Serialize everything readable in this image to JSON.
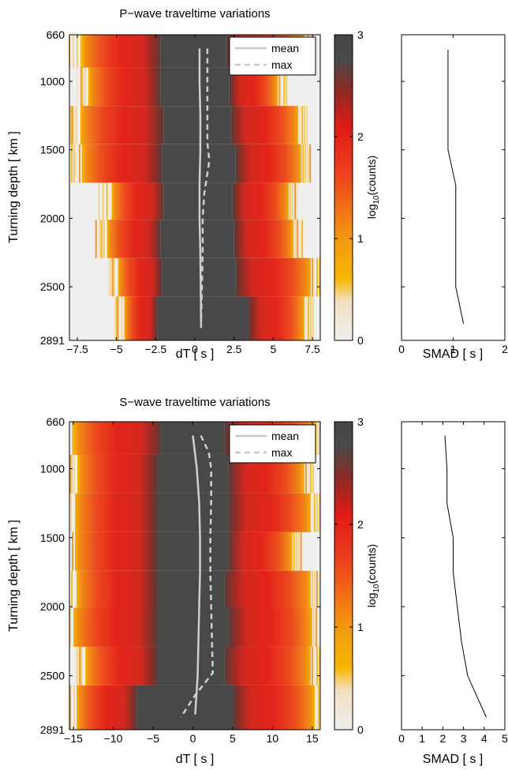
{
  "chart_data": [
    {
      "type": "heatmap",
      "title": "P−wave traveltime variations",
      "xlabel": "dT [ s ]",
      "ylabel": "Turning depth [ km ]",
      "xlim": [
        -8,
        8
      ],
      "ylim": [
        660,
        2891
      ],
      "xticks": [
        -7.5,
        -5,
        -2.5,
        0,
        2.5,
        5,
        7.5
      ],
      "xtick_labels": [
        "−7.5",
        "−5",
        "−2.5",
        "0",
        "2.5",
        "5",
        "7.5"
      ],
      "yticks": [
        660,
        1000,
        1500,
        2000,
        2500,
        2891
      ],
      "ytick_labels": [
        "660",
        "1000",
        "1500",
        "2000",
        "2500",
        "2891"
      ],
      "legend": {
        "placement": "top-right",
        "entries": [
          "mean",
          "max"
        ]
      },
      "colorbar": {
        "label": "log₁₀(counts)",
        "label_main": "log",
        "label_sub": "10",
        "label_tail": "(counts)",
        "range": [
          0,
          3
        ],
        "ticks": [
          "0",
          "1",
          "2",
          "3"
        ]
      },
      "depth_bins": [
        {
          "top": 660,
          "bottom": 900,
          "gray": [
            -2.2,
            2.0
          ],
          "color": [
            -7.2,
            7.0
          ]
        },
        {
          "top": 900,
          "bottom": 1180,
          "gray": [
            -2.2,
            2.2
          ],
          "color": [
            -6.8,
            5.3
          ]
        },
        {
          "top": 1180,
          "bottom": 1460,
          "gray": [
            -2.0,
            2.3
          ],
          "color": [
            -7.3,
            6.6
          ]
        },
        {
          "top": 1460,
          "bottom": 1740,
          "gray": [
            -2.1,
            2.6
          ],
          "color": [
            -7.2,
            6.8
          ]
        },
        {
          "top": 1740,
          "bottom": 2010,
          "gray": [
            -2.0,
            2.4
          ],
          "color": [
            -5.3,
            6.0
          ]
        },
        {
          "top": 2010,
          "bottom": 2290,
          "gray": [
            -2.2,
            2.5
          ],
          "color": [
            -5.6,
            6.3
          ]
        },
        {
          "top": 2290,
          "bottom": 2570,
          "gray": [
            -2.1,
            2.6
          ],
          "color": [
            -4.9,
            7.4
          ]
        },
        {
          "top": 2570,
          "bottom": 2891,
          "gray": [
            -2.4,
            3.4
          ],
          "color": [
            -4.5,
            7.0
          ]
        }
      ],
      "series": [
        {
          "name": "mean",
          "x": [
            0.3,
            0.3,
            0.35,
            0.35,
            0.3,
            0.3,
            0.35,
            0.4
          ],
          "y": [
            760,
            1000,
            1250,
            1500,
            1750,
            2000,
            2250,
            2800
          ]
        },
        {
          "name": "max",
          "x": [
            0.8,
            0.8,
            0.8,
            0.8,
            0.9,
            0.9,
            0.6,
            0.5,
            0.5,
            0.45,
            0.4
          ],
          "y": [
            760,
            1000,
            1250,
            1450,
            1550,
            1600,
            1820,
            2000,
            2250,
            2500,
            2750
          ]
        }
      ]
    },
    {
      "type": "line",
      "title": "",
      "xlabel": "SMAD [ s ]",
      "ylabel": "",
      "xlim": [
        0,
        2
      ],
      "ylim": [
        660,
        2891
      ],
      "xticks": [
        0,
        1,
        2
      ],
      "xtick_labels": [
        "0",
        "1",
        "2"
      ],
      "yticks": [
        1000,
        1500,
        2000,
        2500
      ],
      "series": [
        {
          "x": [
            0.9,
            0.9,
            0.9,
            0.9,
            1.05,
            1.05,
            1.05,
            1.05,
            1.2
          ],
          "y": [
            770,
            1000,
            1250,
            1500,
            1760,
            2000,
            2250,
            2500,
            2770
          ]
        }
      ]
    },
    {
      "type": "heatmap",
      "title": "S−wave traveltime variations",
      "xlabel": "dT [ s ]",
      "ylabel": "Turning depth [ km ]",
      "xlim": [
        -15.5,
        16
      ],
      "ylim": [
        660,
        2891
      ],
      "xticks": [
        -15,
        -10,
        -5,
        0,
        5,
        10,
        15
      ],
      "xtick_labels": [
        "−15",
        "−10",
        "−5",
        "0",
        "5",
        "10",
        "15"
      ],
      "yticks": [
        660,
        1000,
        1500,
        2000,
        2500,
        2891
      ],
      "ytick_labels": [
        "660",
        "1000",
        "1500",
        "2000",
        "2500",
        "2891"
      ],
      "legend": {
        "placement": "top-right",
        "entries": [
          "mean",
          "max"
        ]
      },
      "colorbar": {
        "label": "log₁₀(counts)",
        "label_main": "log",
        "label_sub": "10",
        "label_tail": "(counts)",
        "range": [
          0,
          3
        ],
        "ticks": [
          "0",
          "1",
          "2",
          "3"
        ]
      },
      "depth_bins": [
        {
          "top": 660,
          "bottom": 900,
          "gray": [
            -4.0,
            4.0
          ],
          "color": [
            -15.0,
            15.5
          ]
        },
        {
          "top": 900,
          "bottom": 1180,
          "gray": [
            -4.5,
            4.5
          ],
          "color": [
            -14.5,
            14.0
          ]
        },
        {
          "top": 1180,
          "bottom": 1460,
          "gray": [
            -4.5,
            4.5
          ],
          "color": [
            -14.8,
            14.8
          ]
        },
        {
          "top": 1460,
          "bottom": 1740,
          "gray": [
            -4.5,
            4.5
          ],
          "color": [
            -14.8,
            12.5
          ]
        },
        {
          "top": 1740,
          "bottom": 2010,
          "gray": [
            -4.5,
            4.0
          ],
          "color": [
            -14.6,
            14.8
          ]
        },
        {
          "top": 2010,
          "bottom": 2290,
          "gray": [
            -4.5,
            4.5
          ],
          "color": [
            -15.0,
            15.0
          ]
        },
        {
          "top": 2290,
          "bottom": 2570,
          "gray": [
            -4.5,
            4.0
          ],
          "color": [
            -13.5,
            14.8
          ]
        },
        {
          "top": 2570,
          "bottom": 2891,
          "gray": [
            -7.0,
            5.0
          ],
          "color": [
            -14.6,
            15.3
          ]
        }
      ],
      "series": [
        {
          "name": "mean",
          "x": [
            0.0,
            0.5,
            0.8,
            0.9,
            0.9,
            0.8,
            0.7,
            0.6,
            0.3
          ],
          "y": [
            760,
            1000,
            1250,
            1500,
            1750,
            2000,
            2250,
            2500,
            2780
          ]
        },
        {
          "name": "max",
          "x": [
            1.0,
            2.0,
            2.3,
            2.3,
            2.2,
            2.2,
            2.3,
            2.5,
            0.3,
            -1.5
          ],
          "y": [
            760,
            880,
            1000,
            1250,
            1500,
            1750,
            2000,
            2480,
            2640,
            2800
          ]
        }
      ]
    },
    {
      "type": "line",
      "title": "",
      "xlabel": "SMAD [ s ]",
      "ylabel": "",
      "xlim": [
        0,
        5
      ],
      "ylim": [
        660,
        2891
      ],
      "xticks": [
        0,
        1,
        2,
        3,
        4,
        5
      ],
      "xtick_labels": [
        "0",
        "1",
        "2",
        "3",
        "4",
        "5"
      ],
      "yticks": [
        1000,
        1500,
        2000,
        2500
      ],
      "series": [
        {
          "x": [
            2.1,
            2.2,
            2.2,
            2.5,
            2.5,
            2.7,
            2.9,
            3.2,
            4.1
          ],
          "y": [
            760,
            1000,
            1250,
            1500,
            1750,
            2000,
            2250,
            2500,
            2800
          ]
        }
      ]
    }
  ]
}
